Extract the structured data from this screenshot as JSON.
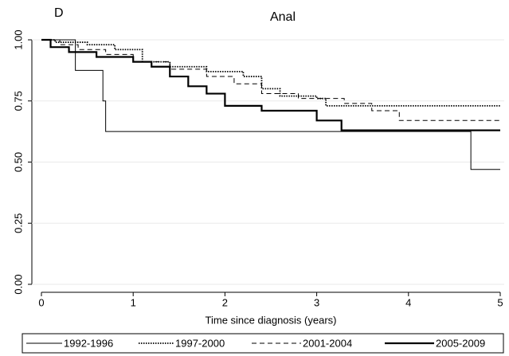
{
  "chart_data": {
    "type": "step",
    "panel_label": "D",
    "title": "Anal",
    "x_label": "Time since diagnosis (years)",
    "xlim": [
      0,
      5
    ],
    "xticks": [
      0,
      1,
      2,
      3,
      4,
      5
    ],
    "ylim": [
      0,
      1
    ],
    "yticks": [
      {
        "value": 0,
        "label": "0.00"
      },
      {
        "value": 0.25,
        "label": "0.25"
      },
      {
        "value": 0.5,
        "label": "0.50"
      },
      {
        "value": 0.75,
        "label": "0.75"
      },
      {
        "value": 1,
        "label": "1.00"
      }
    ],
    "grid": true,
    "legend": "bottom",
    "series": [
      {
        "name": "1992-1996",
        "color": "#000000",
        "dash": "none",
        "width": 1,
        "x": [
          0,
          0.37,
          0.67,
          0.7,
          4.68,
          5
        ],
        "values": [
          1,
          0.875,
          0.75,
          0.625,
          0.47,
          0.47
        ]
      },
      {
        "name": "1997-2000",
        "color": "#000000",
        "dash": "1.5,1.5",
        "width": 1.8,
        "x": [
          0,
          0.15,
          0.5,
          0.8,
          1.1,
          1.4,
          1.8,
          2.2,
          2.4,
          2.6,
          3.0,
          3.1,
          5
        ],
        "values": [
          1,
          0.99,
          0.98,
          0.96,
          0.91,
          0.89,
          0.87,
          0.85,
          0.8,
          0.77,
          0.76,
          0.73,
          0.73
        ]
      },
      {
        "name": "2001-2004",
        "color": "#000000",
        "dash": "6,4",
        "width": 1,
        "x": [
          0,
          0.2,
          0.4,
          0.7,
          1.0,
          1.4,
          1.8,
          2.1,
          2.4,
          2.8,
          3.3,
          3.6,
          3.9,
          5
        ],
        "values": [
          1,
          0.98,
          0.96,
          0.94,
          0.91,
          0.88,
          0.85,
          0.82,
          0.78,
          0.76,
          0.74,
          0.71,
          0.67,
          0.67
        ]
      },
      {
        "name": "2005-2009",
        "color": "#000000",
        "dash": "none",
        "width": 2.2,
        "x": [
          0,
          0.1,
          0.3,
          0.6,
          1.0,
          1.2,
          1.4,
          1.6,
          1.8,
          2.0,
          2.4,
          3.0,
          3.27,
          5
        ],
        "values": [
          1,
          0.97,
          0.95,
          0.93,
          0.91,
          0.89,
          0.85,
          0.81,
          0.78,
          0.73,
          0.71,
          0.67,
          0.63,
          0.63
        ]
      }
    ]
  }
}
